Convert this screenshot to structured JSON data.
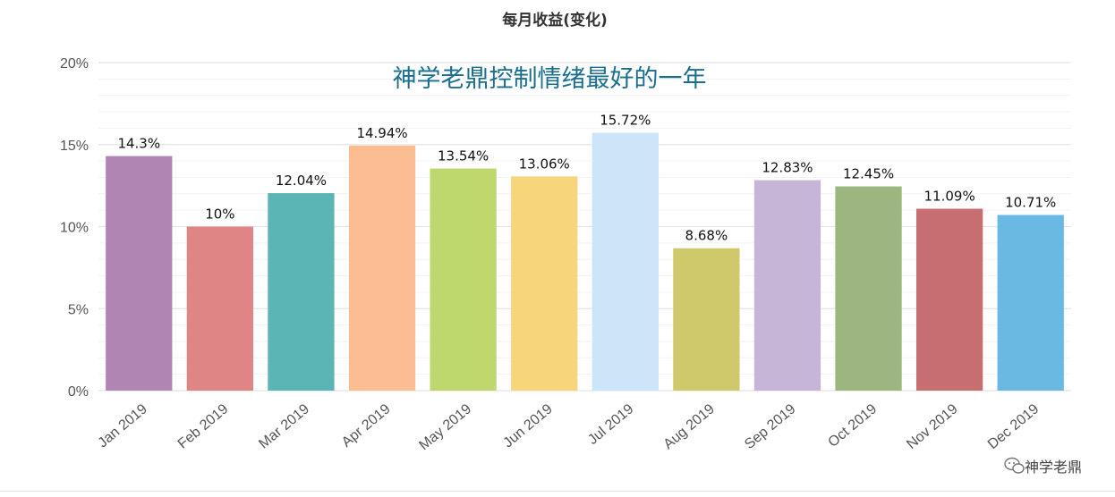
{
  "chart_data": {
    "type": "bar",
    "title": "每月收益(变化)",
    "annotation": "神学老鼎控制情绪最好的一年",
    "xlabel": "",
    "ylabel": "",
    "ylim": [
      0,
      20
    ],
    "yticks": [
      "0%",
      "5%",
      "10%",
      "15%",
      "20%"
    ],
    "grid": true,
    "legend": "none",
    "categories": [
      "Jan 2019",
      "Feb 2019",
      "Mar 2019",
      "Apr 2019",
      "May 2019",
      "Jun 2019",
      "Jul 2019",
      "Aug 2019",
      "Sep 2019",
      "Oct 2019",
      "Nov 2019",
      "Dec 2019"
    ],
    "values": [
      14.3,
      10,
      12.04,
      14.94,
      13.54,
      13.06,
      15.72,
      8.68,
      12.83,
      12.45,
      11.09,
      10.71
    ],
    "labels": [
      "14.3%",
      "10%",
      "12.04%",
      "14.94%",
      "13.54%",
      "13.06%",
      "15.72%",
      "8.68%",
      "12.83%",
      "12.45%",
      "11.09%",
      "10.71%"
    ],
    "colors": [
      "#b085b4",
      "#e08585",
      "#5bb5b5",
      "#fdbd92",
      "#bfd86e",
      "#f7d57a",
      "#cde5f8",
      "#cfc96c",
      "#c6b5d7",
      "#9db67f",
      "#c76e70",
      "#69b9e2"
    ]
  },
  "watermark": {
    "icon": "wechat-icon",
    "text": "神学老鼎"
  }
}
